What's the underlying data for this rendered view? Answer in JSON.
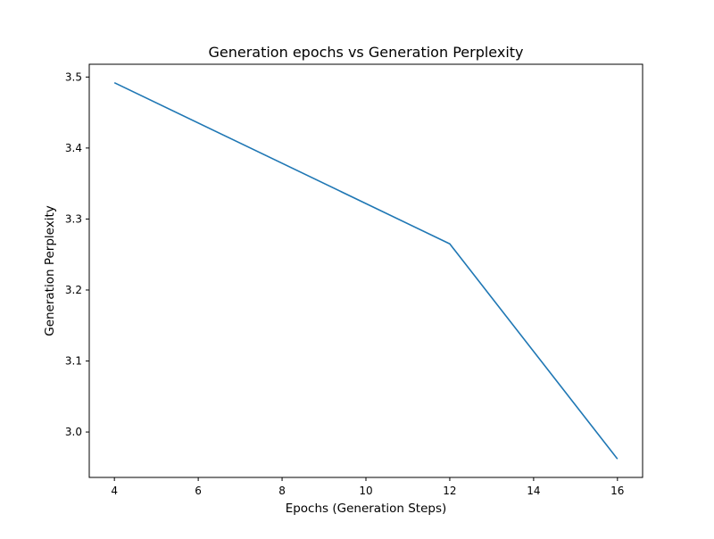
{
  "chart_data": {
    "type": "line",
    "title": "Generation epochs vs Generation Perplexity",
    "xlabel": "Epochs (Generation Steps)",
    "ylabel": "Generation Perplexity",
    "x": [
      4,
      12,
      16
    ],
    "series": [
      {
        "values": [
          3.492,
          3.265,
          2.962
        ],
        "color": "#1f77b4"
      }
    ],
    "xlim": [
      3.4,
      16.6
    ],
    "ylim": [
      2.936,
      3.518
    ],
    "xticks": [
      4,
      6,
      8,
      10,
      12,
      14,
      16
    ],
    "xtick_labels": [
      "4",
      "6",
      "8",
      "10",
      "12",
      "14",
      "16"
    ],
    "yticks": [
      3.0,
      3.1,
      3.2,
      3.3,
      3.4,
      3.5
    ],
    "ytick_labels": [
      "3.0",
      "3.1",
      "3.2",
      "3.3",
      "3.4",
      "3.5"
    ],
    "grid": false,
    "legend": "none"
  }
}
